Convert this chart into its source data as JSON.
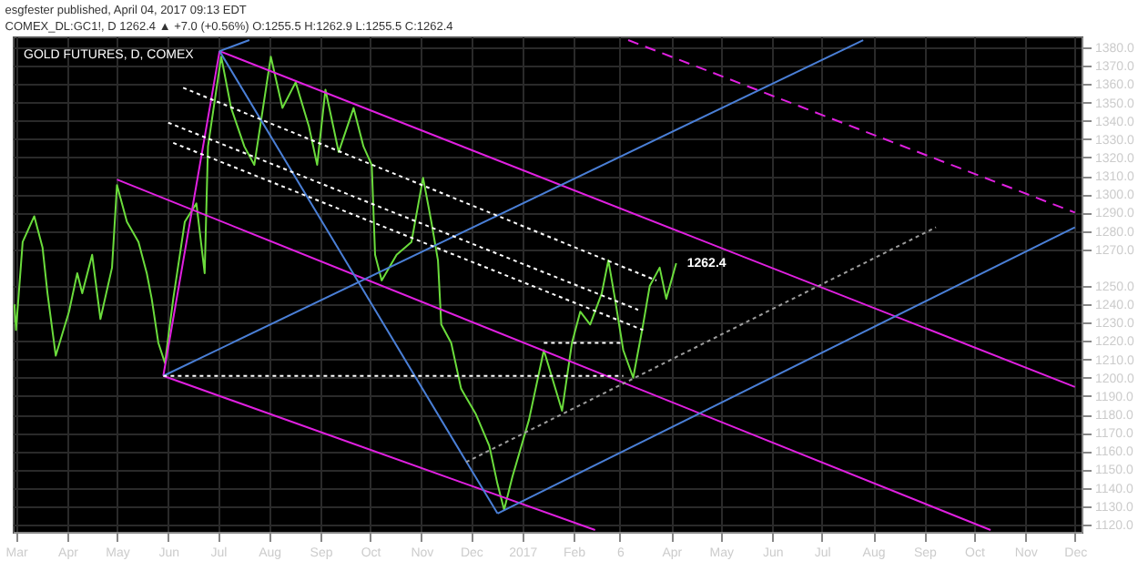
{
  "chart_data": {
    "type": "line",
    "title": "GOLD FUTURES, D, COMEX",
    "subtitle": [
      "esgfester published, April 04, 2017 09:13 EDT",
      "COMEX_DL:GC1!, D  1262.4 ▲ +7.0 (+0.56%)  O:1255.5  H:1262.9  L:1255.5  C:1262.4"
    ],
    "annotations": [
      {
        "text": "1262.4",
        "x": "2017-04-04",
        "y": 1262.4
      }
    ],
    "xlim": [
      "2016-02-28",
      "2017-12-05"
    ],
    "xticks": [
      {
        "value": "2016-03-01",
        "label": "Mar"
      },
      {
        "value": "2016-04-01",
        "label": "Apr"
      },
      {
        "value": "2016-05-01",
        "label": "May"
      },
      {
        "value": "2016-06-01",
        "label": "Jun"
      },
      {
        "value": "2016-07-01",
        "label": "Jul"
      },
      {
        "value": "2016-08-01",
        "label": "Aug"
      },
      {
        "value": "2016-09-01",
        "label": "Sep"
      },
      {
        "value": "2016-10-01",
        "label": "Oct"
      },
      {
        "value": "2016-11-01",
        "label": "Nov"
      },
      {
        "value": "2016-12-01",
        "label": "Dec"
      },
      {
        "value": "2017-01-01",
        "label": "2017"
      },
      {
        "value": "2017-02-01",
        "label": "Feb"
      },
      {
        "value": "2017-03-01",
        "label": "6"
      },
      {
        "value": "2017-04-01",
        "label": "Apr"
      },
      {
        "value": "2017-05-01",
        "label": "May"
      },
      {
        "value": "2017-06-01",
        "label": "Jun"
      },
      {
        "value": "2017-07-01",
        "label": "Jul"
      },
      {
        "value": "2017-08-01",
        "label": "Aug"
      },
      {
        "value": "2017-09-01",
        "label": "Sep"
      },
      {
        "value": "2017-10-01",
        "label": "Oct"
      },
      {
        "value": "2017-11-01",
        "label": "Nov"
      },
      {
        "value": "2017-12-01",
        "label": "Dec"
      }
    ],
    "ylim": [
      1116,
      1386
    ],
    "yticks": [
      {
        "value": 1120,
        "label": "1120.0"
      },
      {
        "value": 1130,
        "label": "1130.0"
      },
      {
        "value": 1140,
        "label": "1140.0"
      },
      {
        "value": 1150,
        "label": "1150.0"
      },
      {
        "value": 1160,
        "label": "1160.0"
      },
      {
        "value": 1170,
        "label": "1170.0"
      },
      {
        "value": 1180,
        "label": "1180.0"
      },
      {
        "value": 1190,
        "label": "1190.0"
      },
      {
        "value": 1200,
        "label": "1200.0"
      },
      {
        "value": 1210,
        "label": "1210.0"
      },
      {
        "value": 1220,
        "label": "1220.0"
      },
      {
        "value": 1230,
        "label": "1230.0"
      },
      {
        "value": 1240,
        "label": "1240.0"
      },
      {
        "value": 1250,
        "label": "1250.0"
      },
      {
        "value": 1270,
        "label": "1270.0"
      },
      {
        "value": 1280,
        "label": "1280.0"
      },
      {
        "value": 1290,
        "label": "1290.0"
      },
      {
        "value": 1300,
        "label": "1300.0"
      },
      {
        "value": 1310,
        "label": "1310.0"
      },
      {
        "value": 1320,
        "label": "1320.0"
      },
      {
        "value": 1330,
        "label": "1330.0"
      },
      {
        "value": 1340,
        "label": "1340.0"
      },
      {
        "value": 1350,
        "label": "1350.0"
      },
      {
        "value": 1360,
        "label": "1360.0"
      },
      {
        "value": 1370,
        "label": "1370.0"
      },
      {
        "value": 1380,
        "label": "1380.0"
      }
    ],
    "grid": true,
    "marker": "none",
    "series": [
      {
        "color": "#6bdc3c",
        "line_style": "solid",
        "x": [
          "2016-02-29",
          "2016-03-01",
          "2016-03-05",
          "2016-03-12",
          "2016-03-17",
          "2016-03-20",
          "2016-03-25",
          "2016-04-02",
          "2016-04-07",
          "2016-04-10",
          "2016-04-16",
          "2016-04-21",
          "2016-04-28",
          "2016-05-01",
          "2016-05-07",
          "2016-05-14",
          "2016-05-19",
          "2016-05-22",
          "2016-05-26",
          "2016-05-30",
          "2016-06-04",
          "2016-06-11",
          "2016-06-18",
          "2016-06-23",
          "2016-06-25",
          "2016-07-03",
          "2016-07-09",
          "2016-07-17",
          "2016-07-23",
          "2016-08-02",
          "2016-08-09",
          "2016-08-17",
          "2016-08-25",
          "2016-08-30",
          "2016-09-04",
          "2016-09-12",
          "2016-09-21",
          "2016-09-27",
          "2016-10-02",
          "2016-10-04",
          "2016-10-08",
          "2016-10-17",
          "2016-10-26",
          "2016-11-02",
          "2016-11-07",
          "2016-11-11",
          "2016-11-13",
          "2016-11-19",
          "2016-11-25",
          "2016-12-04",
          "2016-12-12",
          "2016-12-17",
          "2016-12-21",
          "2016-12-26",
          "2017-01-05",
          "2017-01-14",
          "2017-01-25",
          "2017-01-31",
          "2017-02-05",
          "2017-02-11",
          "2017-02-18",
          "2017-02-22",
          "2017-02-26",
          "2017-03-03",
          "2017-03-09",
          "2017-03-15",
          "2017-03-19",
          "2017-03-25",
          "2017-03-29",
          "2017-04-04"
        ],
        "values": [
          1240,
          1226,
          1274,
          1288,
          1271,
          1246,
          1212,
          1236,
          1257,
          1246,
          1267,
          1232,
          1260,
          1305,
          1285,
          1274,
          1257,
          1243,
          1219,
          1208,
          1243,
          1285,
          1295,
          1257,
          1326,
          1375,
          1347,
          1326,
          1316,
          1375,
          1347,
          1361,
          1337,
          1316,
          1357,
          1323,
          1347,
          1326,
          1316,
          1267,
          1253,
          1267,
          1274,
          1309,
          1285,
          1264,
          1229,
          1219,
          1194,
          1180,
          1163,
          1142,
          1128,
          1146,
          1177,
          1215,
          1182,
          1219,
          1236,
          1229,
          1246,
          1264,
          1243,
          1215,
          1200,
          1229,
          1250,
          1260,
          1243,
          1262.4
        ]
      },
      {
        "color": "#e020e0",
        "line_style": "solid",
        "x": [
          "2016-07-02",
          "2017-12-01"
        ],
        "values": [
          1378,
          1195
        ]
      },
      {
        "color": "#e020e0",
        "line_style": "solid",
        "x": [
          "2016-05-01",
          "2017-10-11"
        ],
        "values": [
          1308,
          1117
        ]
      },
      {
        "color": "#e020e0",
        "line_style": "solid",
        "x": [
          "2016-05-29",
          "2017-02-14"
        ],
        "values": [
          1201,
          1117
        ]
      },
      {
        "color": "#e020e0",
        "line_style": "solid",
        "x": [
          "2016-05-29",
          "2016-07-02"
        ],
        "values": [
          1201,
          1378
        ]
      },
      {
        "color": "#e020e0",
        "line_style": "dashed",
        "x": [
          "2017-03-06",
          "2017-12-01"
        ],
        "values": [
          1384,
          1290
        ]
      },
      {
        "color": "#4a7fd6",
        "line_style": "solid",
        "x": [
          "2016-05-29",
          "2017-07-26"
        ],
        "values": [
          1201,
          1384
        ]
      },
      {
        "color": "#4a7fd6",
        "line_style": "solid",
        "x": [
          "2016-07-02",
          "2016-07-20"
        ],
        "values": [
          1378,
          1384
        ]
      },
      {
        "color": "#4a7fd6",
        "line_style": "solid",
        "x": [
          "2016-07-02",
          "2016-12-17"
        ],
        "values": [
          1378,
          1126
        ]
      },
      {
        "color": "#4a7fd6",
        "line_style": "solid",
        "x": [
          "2016-12-17",
          "2017-12-01"
        ],
        "values": [
          1126,
          1282
        ]
      },
      {
        "color": "#ffffff",
        "line_style": "dotted",
        "x": [
          "2016-06-10",
          "2017-03-23"
        ],
        "values": [
          1358,
          1253
        ]
      },
      {
        "color": "#ffffff",
        "line_style": "dotted",
        "x": [
          "2016-06-01",
          "2017-03-12"
        ],
        "values": [
          1339,
          1237
        ]
      },
      {
        "color": "#ffffff",
        "line_style": "dotted",
        "x": [
          "2016-06-04",
          "2017-03-15"
        ],
        "values": [
          1328,
          1226
        ]
      },
      {
        "color": "#ffffff",
        "line_style": "dotted",
        "x": [
          "2016-05-29",
          "2017-03-03"
        ],
        "values": [
          1201,
          1201
        ]
      },
      {
        "color": "#ffffff",
        "line_style": "dotted",
        "x": [
          "2017-01-14",
          "2017-03-03"
        ],
        "values": [
          1219,
          1219
        ]
      },
      {
        "color": "#9e9e9e",
        "line_style": "dotted",
        "x": [
          "2016-11-28",
          "2017-09-08"
        ],
        "values": [
          1154,
          1282
        ]
      }
    ]
  }
}
